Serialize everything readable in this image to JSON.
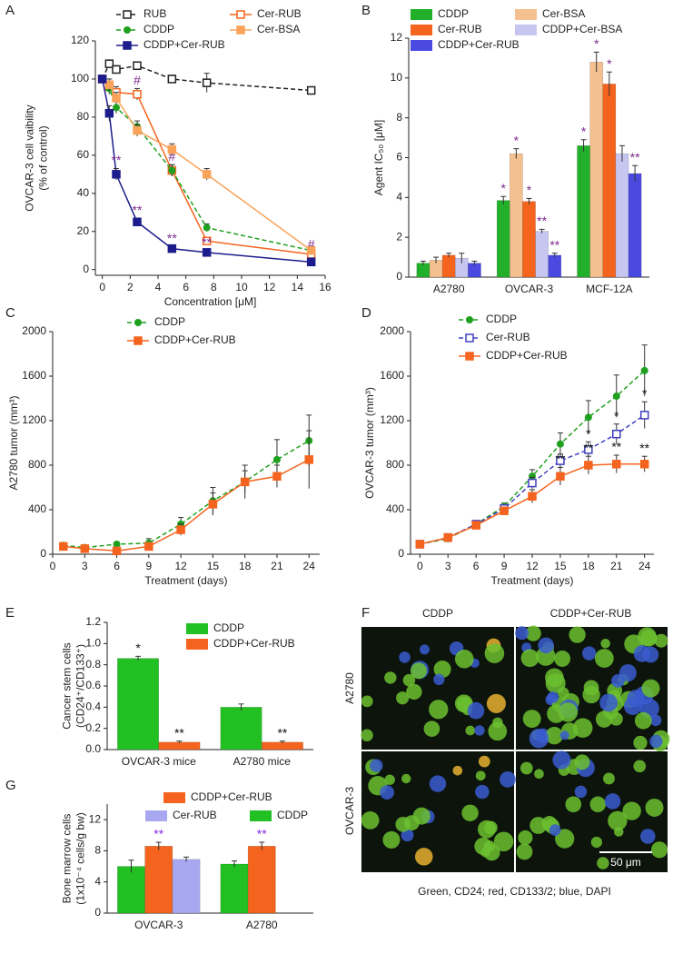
{
  "chart_data": [
    {
      "panel": "A",
      "type": "line",
      "xlabel": "Concentration [μM]",
      "ylabel": [
        "OVCAR-3 cell vaibility",
        "(% of control)"
      ],
      "x": [
        0,
        0.5,
        1,
        2.5,
        5,
        7.5,
        15
      ],
      "xlim": [
        -0.5,
        16
      ],
      "xticks": [
        0,
        2,
        4,
        6,
        8,
        10,
        12,
        14,
        16
      ],
      "ylim": [
        -3,
        120
      ],
      "yticks": [
        0,
        20,
        40,
        60,
        80,
        100,
        120
      ],
      "significance_color": "#7b2a8b",
      "legend_columns": 2,
      "series": [
        {
          "name": "RUB",
          "color": "#222222",
          "marker": "open-square",
          "dash": true,
          "values": [
            100,
            108,
            105,
            107,
            100,
            98,
            94
          ],
          "errors": [
            2,
            2,
            2,
            1,
            2,
            5,
            1
          ]
        },
        {
          "name": "Cer-RUB",
          "color": "#f5641e",
          "marker": "open-square",
          "dash": false,
          "values": [
            100,
            96,
            93,
            92,
            52,
            15,
            8
          ],
          "errors": [
            2,
            3,
            3,
            3,
            3,
            2,
            1
          ],
          "significance": [
            null,
            null,
            null,
            "#",
            "#",
            null,
            "#"
          ]
        },
        {
          "name": "CDDP",
          "color": "#1fa01f",
          "marker": "circle",
          "dash": true,
          "values": [
            100,
            95,
            85,
            75,
            52,
            22,
            10
          ],
          "errors": [
            2,
            3,
            3,
            3,
            3,
            2,
            1
          ]
        },
        {
          "name": "Cer-BSA",
          "color": "#f9a35a",
          "marker": "square",
          "dash": false,
          "values": [
            100,
            97,
            90,
            73,
            63,
            50,
            10
          ],
          "errors": [
            2,
            3,
            3,
            3,
            3,
            3,
            1
          ]
        },
        {
          "name": "CDDP+Cer-RUB",
          "color": "#1c1c8c",
          "marker": "square",
          "dash": false,
          "values": [
            100,
            82,
            50,
            25,
            11,
            9,
            4
          ],
          "errors": [
            2,
            4,
            3,
            2,
            1,
            1,
            1
          ],
          "significance": [
            null,
            null,
            "**",
            "**",
            "**",
            "**",
            null
          ]
        }
      ]
    },
    {
      "panel": "B",
      "type": "bar",
      "ylabel": [
        "Agent IC₅₀ [μM]"
      ],
      "categories": [
        "A2780",
        "OVCAR-3",
        "MCF-12A"
      ],
      "ylim": [
        0,
        12
      ],
      "yticks": [
        0,
        2,
        4,
        6,
        8,
        10,
        12
      ],
      "significance_color": "#7b2a8b",
      "legend_columns": 2,
      "series": [
        {
          "name": "CDDP",
          "color": "#22b02a",
          "values": [
            0.7,
            3.85,
            6.6
          ],
          "errors": [
            0.1,
            0.2,
            0.3
          ],
          "significance": [
            null,
            "*",
            "*"
          ]
        },
        {
          "name": "Cer-BSA",
          "color": "#f5c08f",
          "values": [
            0.85,
            6.2,
            10.8
          ],
          "errors": [
            0.15,
            0.25,
            0.5
          ],
          "significance": [
            null,
            "*",
            "*"
          ]
        },
        {
          "name": "Cer-RUB",
          "color": "#f5641e",
          "values": [
            1.1,
            3.8,
            9.7
          ],
          "errors": [
            0.1,
            0.15,
            0.6
          ],
          "significance": [
            null,
            "*",
            "*"
          ]
        },
        {
          "name": "CDDP+Cer-BSA",
          "color": "#c6c6f0",
          "values": [
            0.95,
            2.3,
            6.2
          ],
          "errors": [
            0.25,
            0.1,
            0.4
          ],
          "significance": [
            null,
            "**",
            null
          ]
        },
        {
          "name": "CDDP+Cer-RUB",
          "color": "#4a4ae0",
          "values": [
            0.7,
            1.1,
            5.2
          ],
          "errors": [
            0.1,
            0.1,
            0.4
          ],
          "significance": [
            null,
            "**",
            "**"
          ]
        }
      ]
    },
    {
      "panel": "C",
      "type": "line",
      "xlabel": "Treatment (days)",
      "ylabel": [
        "A2780 tumor (mm³)"
      ],
      "x": [
        1,
        3,
        6,
        9,
        12,
        15,
        18,
        21,
        24
      ],
      "xlim": [
        0,
        25
      ],
      "xticks": [
        0,
        3,
        6,
        9,
        12,
        15,
        18,
        21,
        24
      ],
      "ylim": [
        0,
        2000
      ],
      "yticks": [
        0,
        400,
        800,
        1200,
        1600,
        2000
      ],
      "legend_columns": 1,
      "series": [
        {
          "name": "CDDP",
          "color": "#1fa01f",
          "marker": "circle",
          "dash": true,
          "values": [
            80,
            60,
            90,
            100,
            270,
            480,
            650,
            850,
            1020
          ],
          "errors": [
            20,
            20,
            20,
            40,
            60,
            120,
            150,
            180,
            230
          ]
        },
        {
          "name": "CDDP+Cer-RUB",
          "color": "#f5641e",
          "marker": "square",
          "dash": false,
          "values": [
            70,
            50,
            30,
            70,
            220,
            450,
            650,
            700,
            850
          ],
          "errors": [
            20,
            20,
            20,
            30,
            50,
            100,
            100,
            100,
            260
          ]
        }
      ]
    },
    {
      "panel": "D",
      "type": "line",
      "xlabel": "Treatment (days)",
      "ylabel": [
        "OVCAR-3 tumor (mm³)"
      ],
      "x": [
        0,
        3,
        6,
        9,
        12,
        15,
        18,
        21,
        24
      ],
      "xlim": [
        -1,
        25
      ],
      "xticks": [
        0,
        3,
        6,
        9,
        12,
        15,
        18,
        21,
        24
      ],
      "ylim": [
        0,
        2000
      ],
      "yticks": [
        0,
        400,
        800,
        1200,
        1600,
        2000
      ],
      "significance_color": "#111111",
      "legend_columns": 1,
      "series": [
        {
          "name": "CDDP",
          "color": "#1fa01f",
          "marker": "circle",
          "dash": true,
          "values": [
            90,
            140,
            270,
            430,
            700,
            990,
            1230,
            1420,
            1650
          ],
          "errors": [
            20,
            20,
            30,
            30,
            60,
            100,
            150,
            190,
            230
          ]
        },
        {
          "name": "Cer-RUB",
          "color": "#4040c0",
          "marker": "open-square",
          "dash": true,
          "values": [
            90,
            150,
            270,
            410,
            640,
            840,
            940,
            1080,
            1250
          ],
          "errors": [
            20,
            20,
            30,
            30,
            50,
            60,
            70,
            90,
            120
          ],
          "significance": [
            null,
            null,
            null,
            null,
            null,
            null,
            "*",
            "*",
            "*"
          ]
        },
        {
          "name": "CDDP+Cer-RUB",
          "color": "#f5641e",
          "marker": "square",
          "dash": false,
          "values": [
            90,
            150,
            260,
            390,
            520,
            700,
            800,
            810,
            810
          ],
          "errors": [
            20,
            20,
            30,
            30,
            60,
            80,
            80,
            80,
            70
          ],
          "significance": [
            null,
            null,
            null,
            null,
            null,
            "**",
            "**",
            "**",
            "**"
          ]
        }
      ]
    },
    {
      "panel": "E",
      "type": "bar",
      "ylabel": [
        "Cancer stem cells",
        "(CD24⁺/CD133⁺)"
      ],
      "categories": [
        "OVCAR-3 mice",
        "A2780 mice"
      ],
      "ylim": [
        0,
        1.2
      ],
      "yticks": [
        {
          "value": 0,
          "label": "0.0"
        },
        0.2,
        0.4,
        0.6,
        0.8,
        {
          "value": 1,
          "label": "1.0"
        },
        1.2
      ],
      "significance_color": "#111111",
      "legend_columns": 1,
      "series": [
        {
          "name": "CDDP",
          "color": "#22c022",
          "values": [
            0.86,
            0.4
          ],
          "errors": [
            0.02,
            0.03
          ],
          "significance": [
            "*",
            null
          ]
        },
        {
          "name": "CDDP+Cer-RUB",
          "color": "#f5641e",
          "values": [
            0.07,
            0.07
          ],
          "errors": [
            0.01,
            0.01
          ],
          "significance": [
            "**",
            "**"
          ]
        }
      ]
    },
    {
      "panel": "G",
      "type": "bar",
      "ylabel": [
        "Bone marrow cells",
        "(1x10⁻⁴ cells/g bw)"
      ],
      "categories": [
        "OVCAR-3",
        "A2780"
      ],
      "ylim": [
        0,
        14
      ],
      "yticks": [
        0,
        4,
        8,
        12
      ],
      "significance_color": "#8a2be2",
      "legend_columns": 2,
      "series": [
        {
          "name": "CDDP",
          "color": "#22c022",
          "values": [
            6.0,
            6.3
          ],
          "errors": [
            0.8,
            0.4
          ]
        },
        {
          "name": "CDDP+Cer-RUB",
          "color": "#f5641e",
          "values": [
            8.6,
            8.6
          ],
          "errors": [
            0.5,
            0.5
          ],
          "significance": [
            "**",
            "**"
          ]
        },
        {
          "name": "Cer-RUB",
          "color": "#a8a8f0",
          "values": [
            6.9,
            null
          ],
          "errors": [
            0.3,
            null
          ]
        }
      ]
    }
  ],
  "image_panel": {
    "panel": "F",
    "columns": [
      "CDDP",
      "CDDP+Cer-RUB"
    ],
    "rows": [
      "A2780",
      "OVCAR-3"
    ],
    "scale_bar": "50 μm",
    "caption": "Green, CD24; red, CD133/2; blue, DAPI"
  }
}
